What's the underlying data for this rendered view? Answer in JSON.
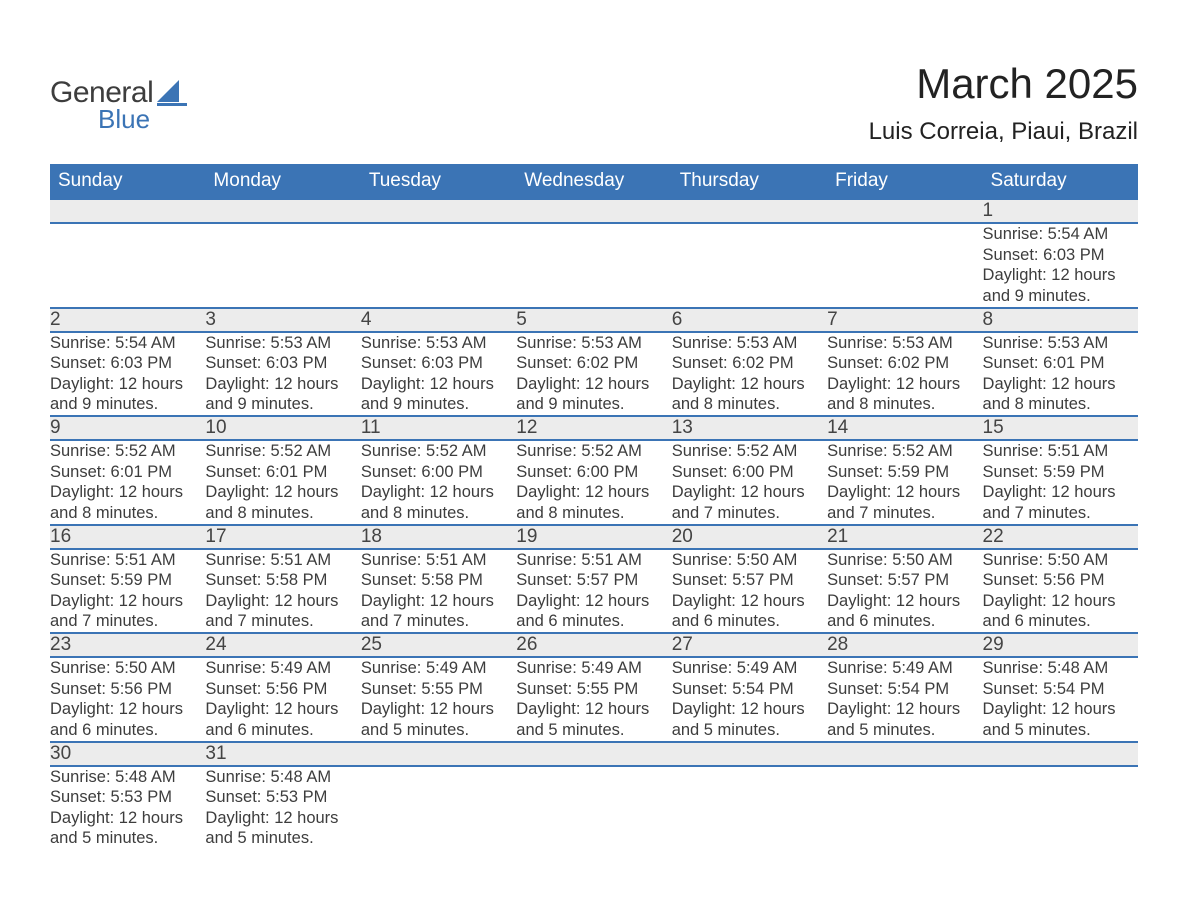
{
  "brand": {
    "name_part1": "General",
    "name_part2": "Blue",
    "accent_color": "#3b74b5"
  },
  "title": {
    "month_year": "March 2025",
    "location": "Luis Correia, Piaui, Brazil"
  },
  "calendar": {
    "header_bg": "#3b74b5",
    "header_fg": "#ffffff",
    "daynum_bg": "#ececec",
    "row_divider": "#3b74b5",
    "text_color": "#3d3d3d",
    "font_size_header": 19,
    "font_size_daynum": 19,
    "font_size_detail": 16.5,
    "day_headers": [
      "Sunday",
      "Monday",
      "Tuesday",
      "Wednesday",
      "Thursday",
      "Friday",
      "Saturday"
    ],
    "weeks": [
      [
        null,
        null,
        null,
        null,
        null,
        null,
        {
          "n": "1",
          "sunrise": "Sunrise: 5:54 AM",
          "sunset": "Sunset: 6:03 PM",
          "daylight": "Daylight: 12 hours and 9 minutes."
        }
      ],
      [
        {
          "n": "2",
          "sunrise": "Sunrise: 5:54 AM",
          "sunset": "Sunset: 6:03 PM",
          "daylight": "Daylight: 12 hours and 9 minutes."
        },
        {
          "n": "3",
          "sunrise": "Sunrise: 5:53 AM",
          "sunset": "Sunset: 6:03 PM",
          "daylight": "Daylight: 12 hours and 9 minutes."
        },
        {
          "n": "4",
          "sunrise": "Sunrise: 5:53 AM",
          "sunset": "Sunset: 6:03 PM",
          "daylight": "Daylight: 12 hours and 9 minutes."
        },
        {
          "n": "5",
          "sunrise": "Sunrise: 5:53 AM",
          "sunset": "Sunset: 6:02 PM",
          "daylight": "Daylight: 12 hours and 9 minutes."
        },
        {
          "n": "6",
          "sunrise": "Sunrise: 5:53 AM",
          "sunset": "Sunset: 6:02 PM",
          "daylight": "Daylight: 12 hours and 8 minutes."
        },
        {
          "n": "7",
          "sunrise": "Sunrise: 5:53 AM",
          "sunset": "Sunset: 6:02 PM",
          "daylight": "Daylight: 12 hours and 8 minutes."
        },
        {
          "n": "8",
          "sunrise": "Sunrise: 5:53 AM",
          "sunset": "Sunset: 6:01 PM",
          "daylight": "Daylight: 12 hours and 8 minutes."
        }
      ],
      [
        {
          "n": "9",
          "sunrise": "Sunrise: 5:52 AM",
          "sunset": "Sunset: 6:01 PM",
          "daylight": "Daylight: 12 hours and 8 minutes."
        },
        {
          "n": "10",
          "sunrise": "Sunrise: 5:52 AM",
          "sunset": "Sunset: 6:01 PM",
          "daylight": "Daylight: 12 hours and 8 minutes."
        },
        {
          "n": "11",
          "sunrise": "Sunrise: 5:52 AM",
          "sunset": "Sunset: 6:00 PM",
          "daylight": "Daylight: 12 hours and 8 minutes."
        },
        {
          "n": "12",
          "sunrise": "Sunrise: 5:52 AM",
          "sunset": "Sunset: 6:00 PM",
          "daylight": "Daylight: 12 hours and 8 minutes."
        },
        {
          "n": "13",
          "sunrise": "Sunrise: 5:52 AM",
          "sunset": "Sunset: 6:00 PM",
          "daylight": "Daylight: 12 hours and 7 minutes."
        },
        {
          "n": "14",
          "sunrise": "Sunrise: 5:52 AM",
          "sunset": "Sunset: 5:59 PM",
          "daylight": "Daylight: 12 hours and 7 minutes."
        },
        {
          "n": "15",
          "sunrise": "Sunrise: 5:51 AM",
          "sunset": "Sunset: 5:59 PM",
          "daylight": "Daylight: 12 hours and 7 minutes."
        }
      ],
      [
        {
          "n": "16",
          "sunrise": "Sunrise: 5:51 AM",
          "sunset": "Sunset: 5:59 PM",
          "daylight": "Daylight: 12 hours and 7 minutes."
        },
        {
          "n": "17",
          "sunrise": "Sunrise: 5:51 AM",
          "sunset": "Sunset: 5:58 PM",
          "daylight": "Daylight: 12 hours and 7 minutes."
        },
        {
          "n": "18",
          "sunrise": "Sunrise: 5:51 AM",
          "sunset": "Sunset: 5:58 PM",
          "daylight": "Daylight: 12 hours and 7 minutes."
        },
        {
          "n": "19",
          "sunrise": "Sunrise: 5:51 AM",
          "sunset": "Sunset: 5:57 PM",
          "daylight": "Daylight: 12 hours and 6 minutes."
        },
        {
          "n": "20",
          "sunrise": "Sunrise: 5:50 AM",
          "sunset": "Sunset: 5:57 PM",
          "daylight": "Daylight: 12 hours and 6 minutes."
        },
        {
          "n": "21",
          "sunrise": "Sunrise: 5:50 AM",
          "sunset": "Sunset: 5:57 PM",
          "daylight": "Daylight: 12 hours and 6 minutes."
        },
        {
          "n": "22",
          "sunrise": "Sunrise: 5:50 AM",
          "sunset": "Sunset: 5:56 PM",
          "daylight": "Daylight: 12 hours and 6 minutes."
        }
      ],
      [
        {
          "n": "23",
          "sunrise": "Sunrise: 5:50 AM",
          "sunset": "Sunset: 5:56 PM",
          "daylight": "Daylight: 12 hours and 6 minutes."
        },
        {
          "n": "24",
          "sunrise": "Sunrise: 5:49 AM",
          "sunset": "Sunset: 5:56 PM",
          "daylight": "Daylight: 12 hours and 6 minutes."
        },
        {
          "n": "25",
          "sunrise": "Sunrise: 5:49 AM",
          "sunset": "Sunset: 5:55 PM",
          "daylight": "Daylight: 12 hours and 5 minutes."
        },
        {
          "n": "26",
          "sunrise": "Sunrise: 5:49 AM",
          "sunset": "Sunset: 5:55 PM",
          "daylight": "Daylight: 12 hours and 5 minutes."
        },
        {
          "n": "27",
          "sunrise": "Sunrise: 5:49 AM",
          "sunset": "Sunset: 5:54 PM",
          "daylight": "Daylight: 12 hours and 5 minutes."
        },
        {
          "n": "28",
          "sunrise": "Sunrise: 5:49 AM",
          "sunset": "Sunset: 5:54 PM",
          "daylight": "Daylight: 12 hours and 5 minutes."
        },
        {
          "n": "29",
          "sunrise": "Sunrise: 5:48 AM",
          "sunset": "Sunset: 5:54 PM",
          "daylight": "Daylight: 12 hours and 5 minutes."
        }
      ],
      [
        {
          "n": "30",
          "sunrise": "Sunrise: 5:48 AM",
          "sunset": "Sunset: 5:53 PM",
          "daylight": "Daylight: 12 hours and 5 minutes."
        },
        {
          "n": "31",
          "sunrise": "Sunrise: 5:48 AM",
          "sunset": "Sunset: 5:53 PM",
          "daylight": "Daylight: 12 hours and 5 minutes."
        },
        null,
        null,
        null,
        null,
        null
      ]
    ]
  }
}
